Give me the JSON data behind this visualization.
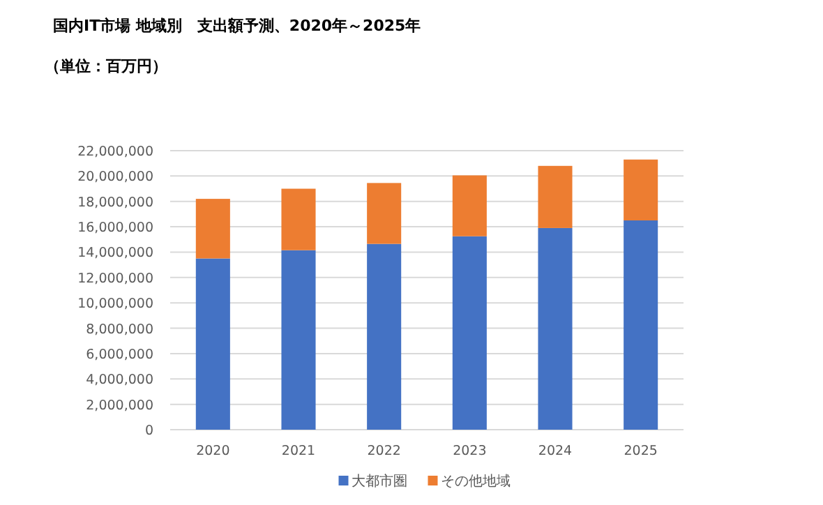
{
  "chart_data": {
    "type": "bar",
    "title": "国内IT市場 地域別　支出額予測、2020年～2025年",
    "subtitle": "（単位：百万円）",
    "stacked": true,
    "categories": [
      "2020",
      "2021",
      "2022",
      "2023",
      "2024",
      "2025"
    ],
    "series": [
      {
        "name": "大都市圏",
        "color": "#4472c4",
        "values": [
          13500000,
          14150000,
          14650000,
          15250000,
          15900000,
          16500000
        ]
      },
      {
        "name": "その他地域",
        "color": "#ed7d31",
        "values": [
          4700000,
          4850000,
          4800000,
          4800000,
          4900000,
          4800000
        ]
      }
    ],
    "ylim": [
      0,
      22000000
    ],
    "yticks": [
      {
        "value": 0,
        "label": "0"
      },
      {
        "value": 2000000,
        "label": "2,000,000"
      },
      {
        "value": 4000000,
        "label": "4,000,000"
      },
      {
        "value": 6000000,
        "label": "6,000,000"
      },
      {
        "value": 8000000,
        "label": "8,000,000"
      },
      {
        "value": 10000000,
        "label": "10,000,000"
      },
      {
        "value": 12000000,
        "label": "12,000,000"
      },
      {
        "value": 14000000,
        "label": "14,000,000"
      },
      {
        "value": 16000000,
        "label": "16,000,000"
      },
      {
        "value": 18000000,
        "label": "18,000,000"
      },
      {
        "value": 20000000,
        "label": "20,000,000"
      },
      {
        "value": 22000000,
        "label": "22,000,000"
      }
    ],
    "grid": "y",
    "legend": "bottom"
  }
}
